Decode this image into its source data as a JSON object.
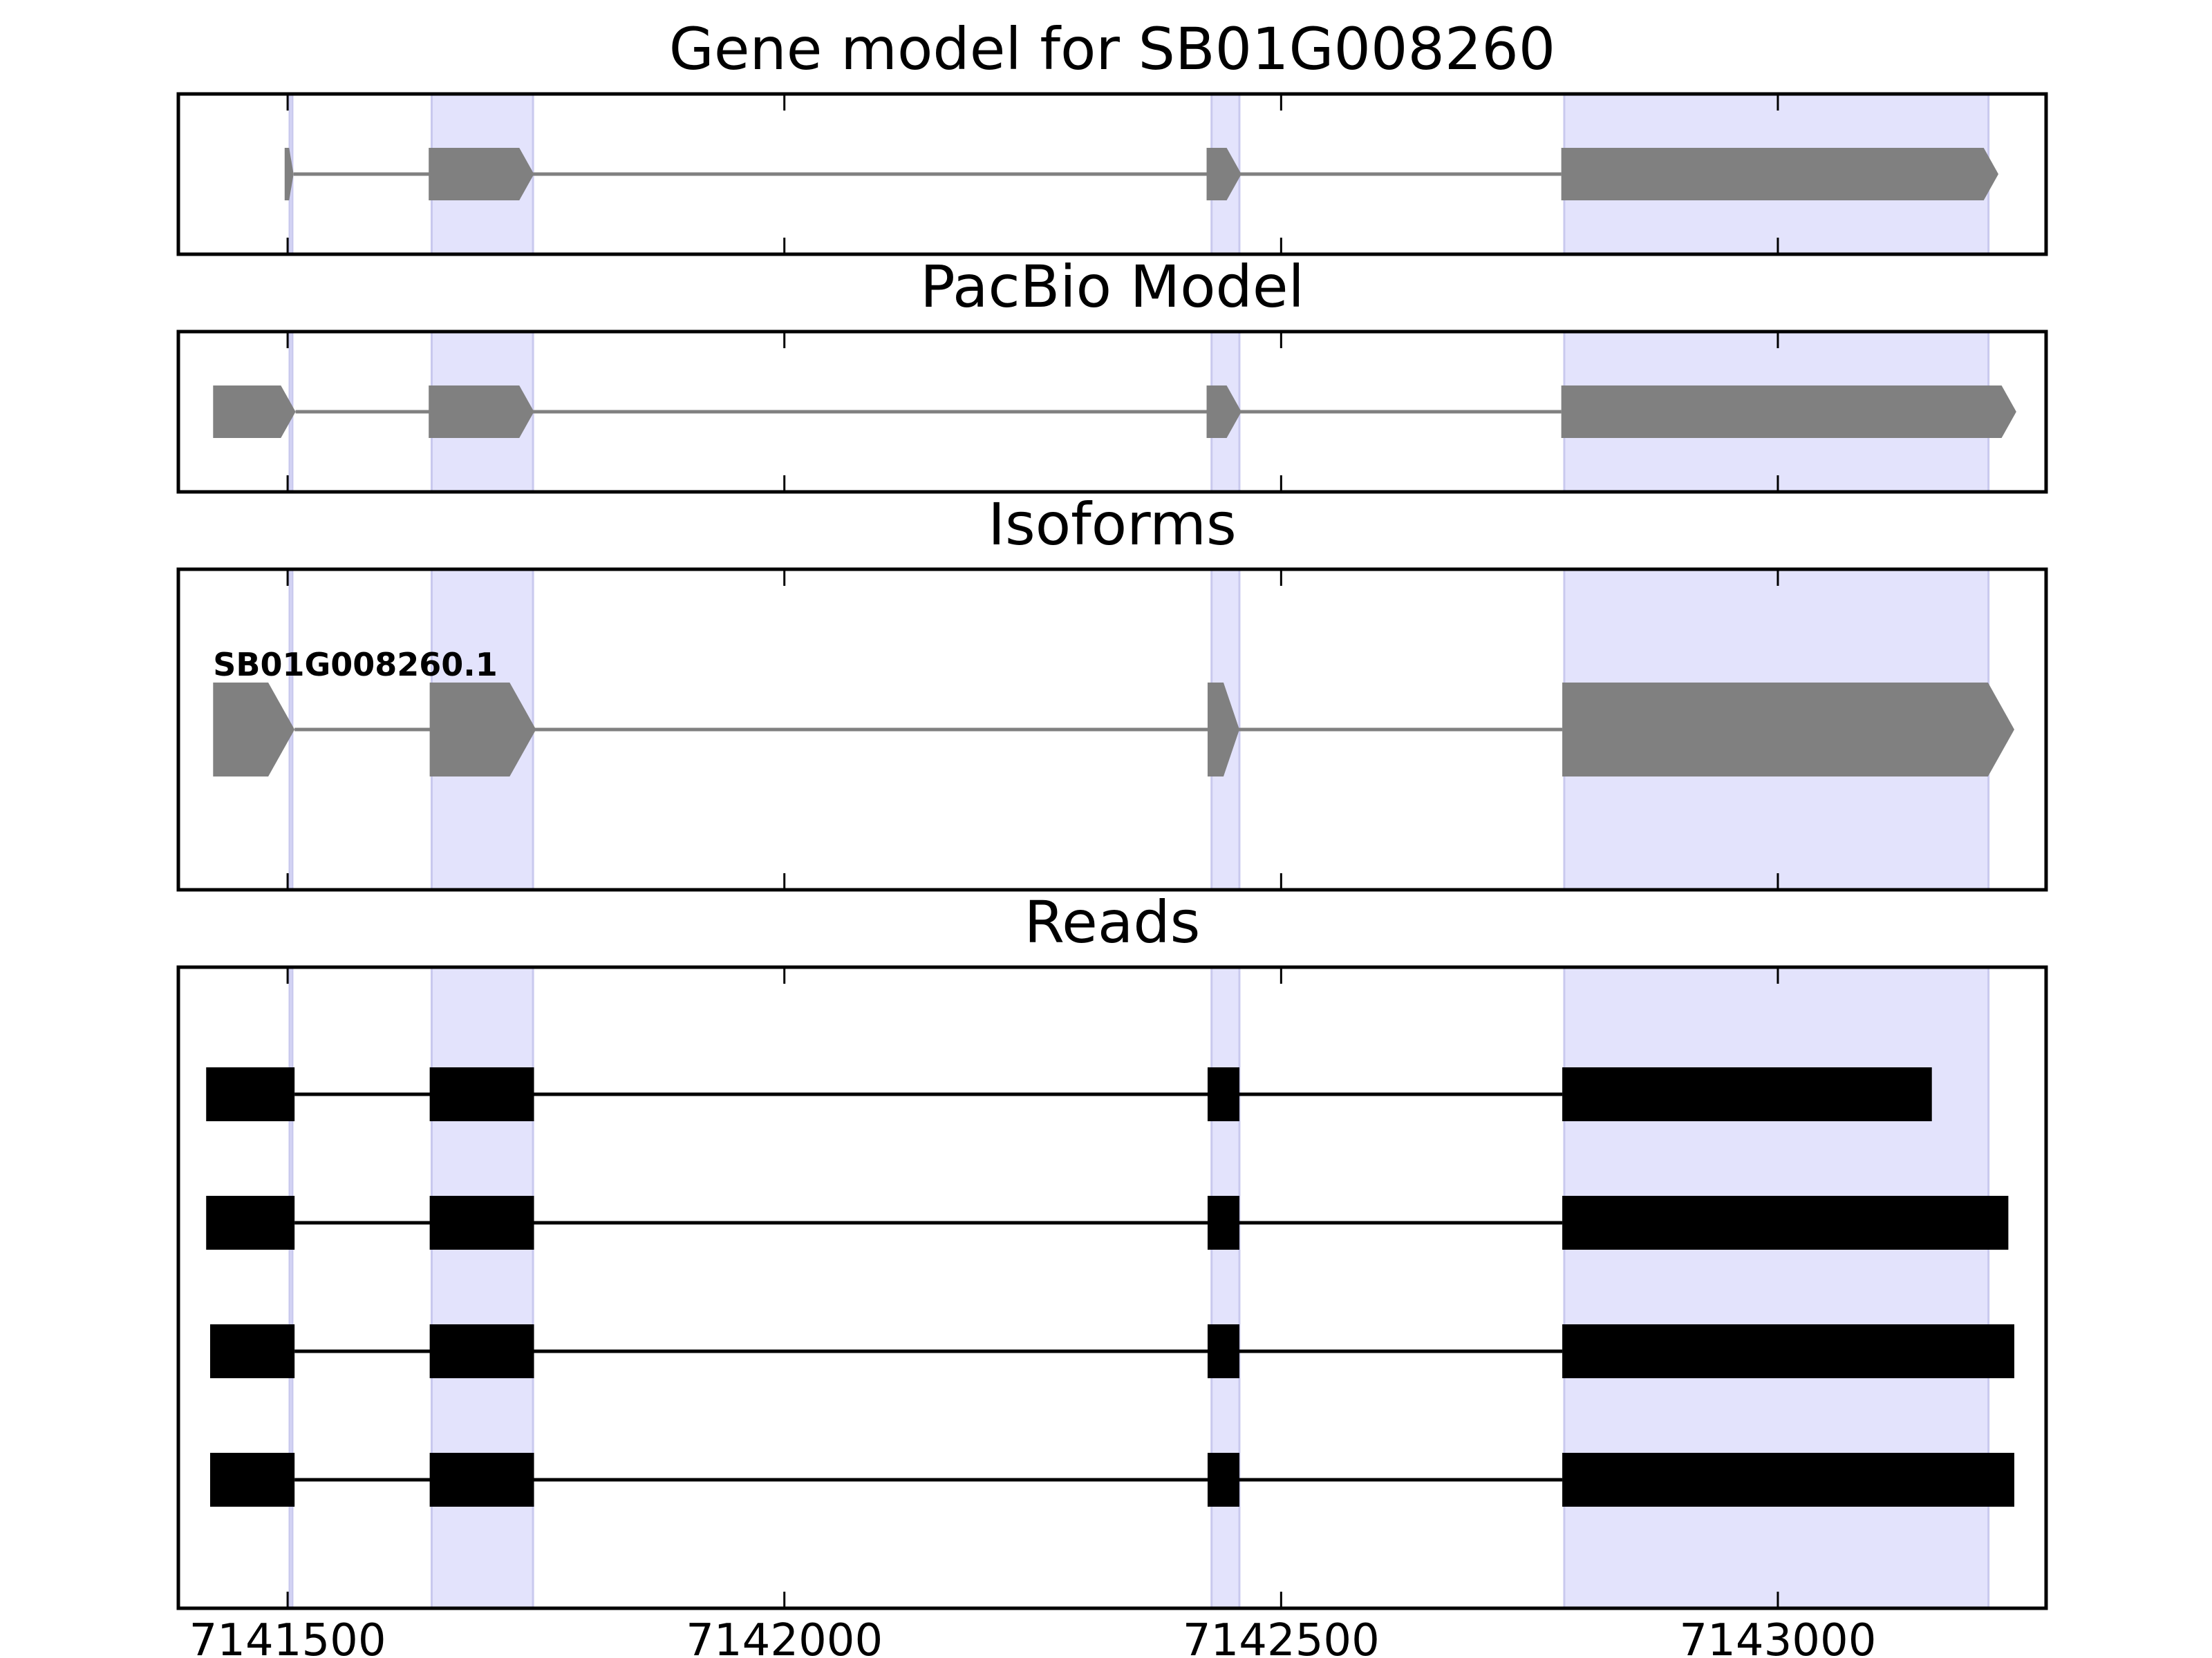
{
  "chart_data": {
    "type": "gene-structure",
    "xlim": [
      7141390,
      7143270
    ],
    "x_ticks": [
      7141500,
      7142000,
      7142500,
      7143000
    ],
    "x_tick_labels": [
      "7141500",
      "7142000",
      "7142500",
      "7143000"
    ],
    "colors": {
      "highlight": "#e3e3fc",
      "highlight_edge": "#c9c9ee",
      "model_fill": "#808080",
      "intron_model": "#808080",
      "read_fill": "#000000",
      "intron_read": "#000000",
      "frame": "#000000"
    },
    "highlight_regions": [
      [
        7141502,
        7141504
      ],
      [
        7141645,
        7141747
      ],
      [
        7142430,
        7142458
      ],
      [
        7142785,
        7143212
      ]
    ],
    "panels": [
      {
        "title": "Gene model for SB01G008260",
        "features": [
          {
            "exons": [
              [
                7141497,
                7141506
              ],
              [
                7141642,
                7141748
              ],
              [
                7142425,
                7142460
              ],
              [
                7142782,
                7143222
              ]
            ]
          }
        ]
      },
      {
        "title": "PacBio Model",
        "features": [
          {
            "exons": [
              [
                7141425,
                7141508
              ],
              [
                7141642,
                7141748
              ],
              [
                7142425,
                7142460
              ],
              [
                7142782,
                7143240
              ]
            ]
          }
        ]
      },
      {
        "title": "Isoforms",
        "features": [
          {
            "label": "SB01G008260.1",
            "exons": [
              [
                7141425,
                7141507
              ],
              [
                7141643,
                7141750
              ],
              [
                7142426,
                7142458
              ],
              [
                7142783,
                7143238
              ]
            ]
          }
        ]
      },
      {
        "title": "Reads",
        "features": [
          {
            "exons": [
              [
                7141418,
                7141507
              ],
              [
                7141643,
                7141748
              ],
              [
                7142426,
                7142458
              ],
              [
                7142783,
                7143155
              ]
            ]
          },
          {
            "exons": [
              [
                7141418,
                7141507
              ],
              [
                7141643,
                7141748
              ],
              [
                7142426,
                7142458
              ],
              [
                7142783,
                7143232
              ]
            ]
          },
          {
            "exons": [
              [
                7141422,
                7141507
              ],
              [
                7141643,
                7141748
              ],
              [
                7142426,
                7142458
              ],
              [
                7142783,
                7143238
              ]
            ]
          },
          {
            "exons": [
              [
                7141422,
                7141507
              ],
              [
                7141643,
                7141748
              ],
              [
                7142426,
                7142458
              ],
              [
                7142783,
                7143238
              ]
            ]
          }
        ]
      }
    ]
  }
}
